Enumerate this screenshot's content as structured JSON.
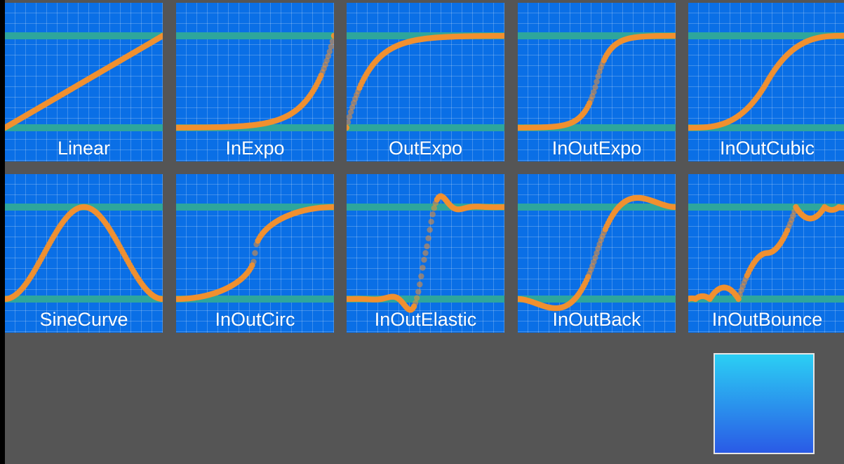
{
  "tiles": [
    {
      "label": "Linear",
      "curve": "linear"
    },
    {
      "label": "InExpo",
      "curve": "inExpo"
    },
    {
      "label": "OutExpo",
      "curve": "outExpo"
    },
    {
      "label": "InOutExpo",
      "curve": "inOutExpo"
    },
    {
      "label": "InOutCubic",
      "curve": "inOutCubic"
    },
    {
      "label": "SineCurve",
      "curve": "sineCurve"
    },
    {
      "label": "InOutCirc",
      "curve": "inOutCirc"
    },
    {
      "label": "InOutElastic",
      "curve": "inOutElastic"
    },
    {
      "label": "InOutBack",
      "curve": "inOutBack"
    },
    {
      "label": "InOutBounce",
      "curve": "inOutBounce"
    }
  ],
  "colors": {
    "background": "#555555",
    "tile": "#0a6fe6",
    "guide_line": "#2ea69c",
    "curve": "#f0902f",
    "preview_top": "#2bcff4",
    "preview_bottom": "#2a5ae6"
  }
}
